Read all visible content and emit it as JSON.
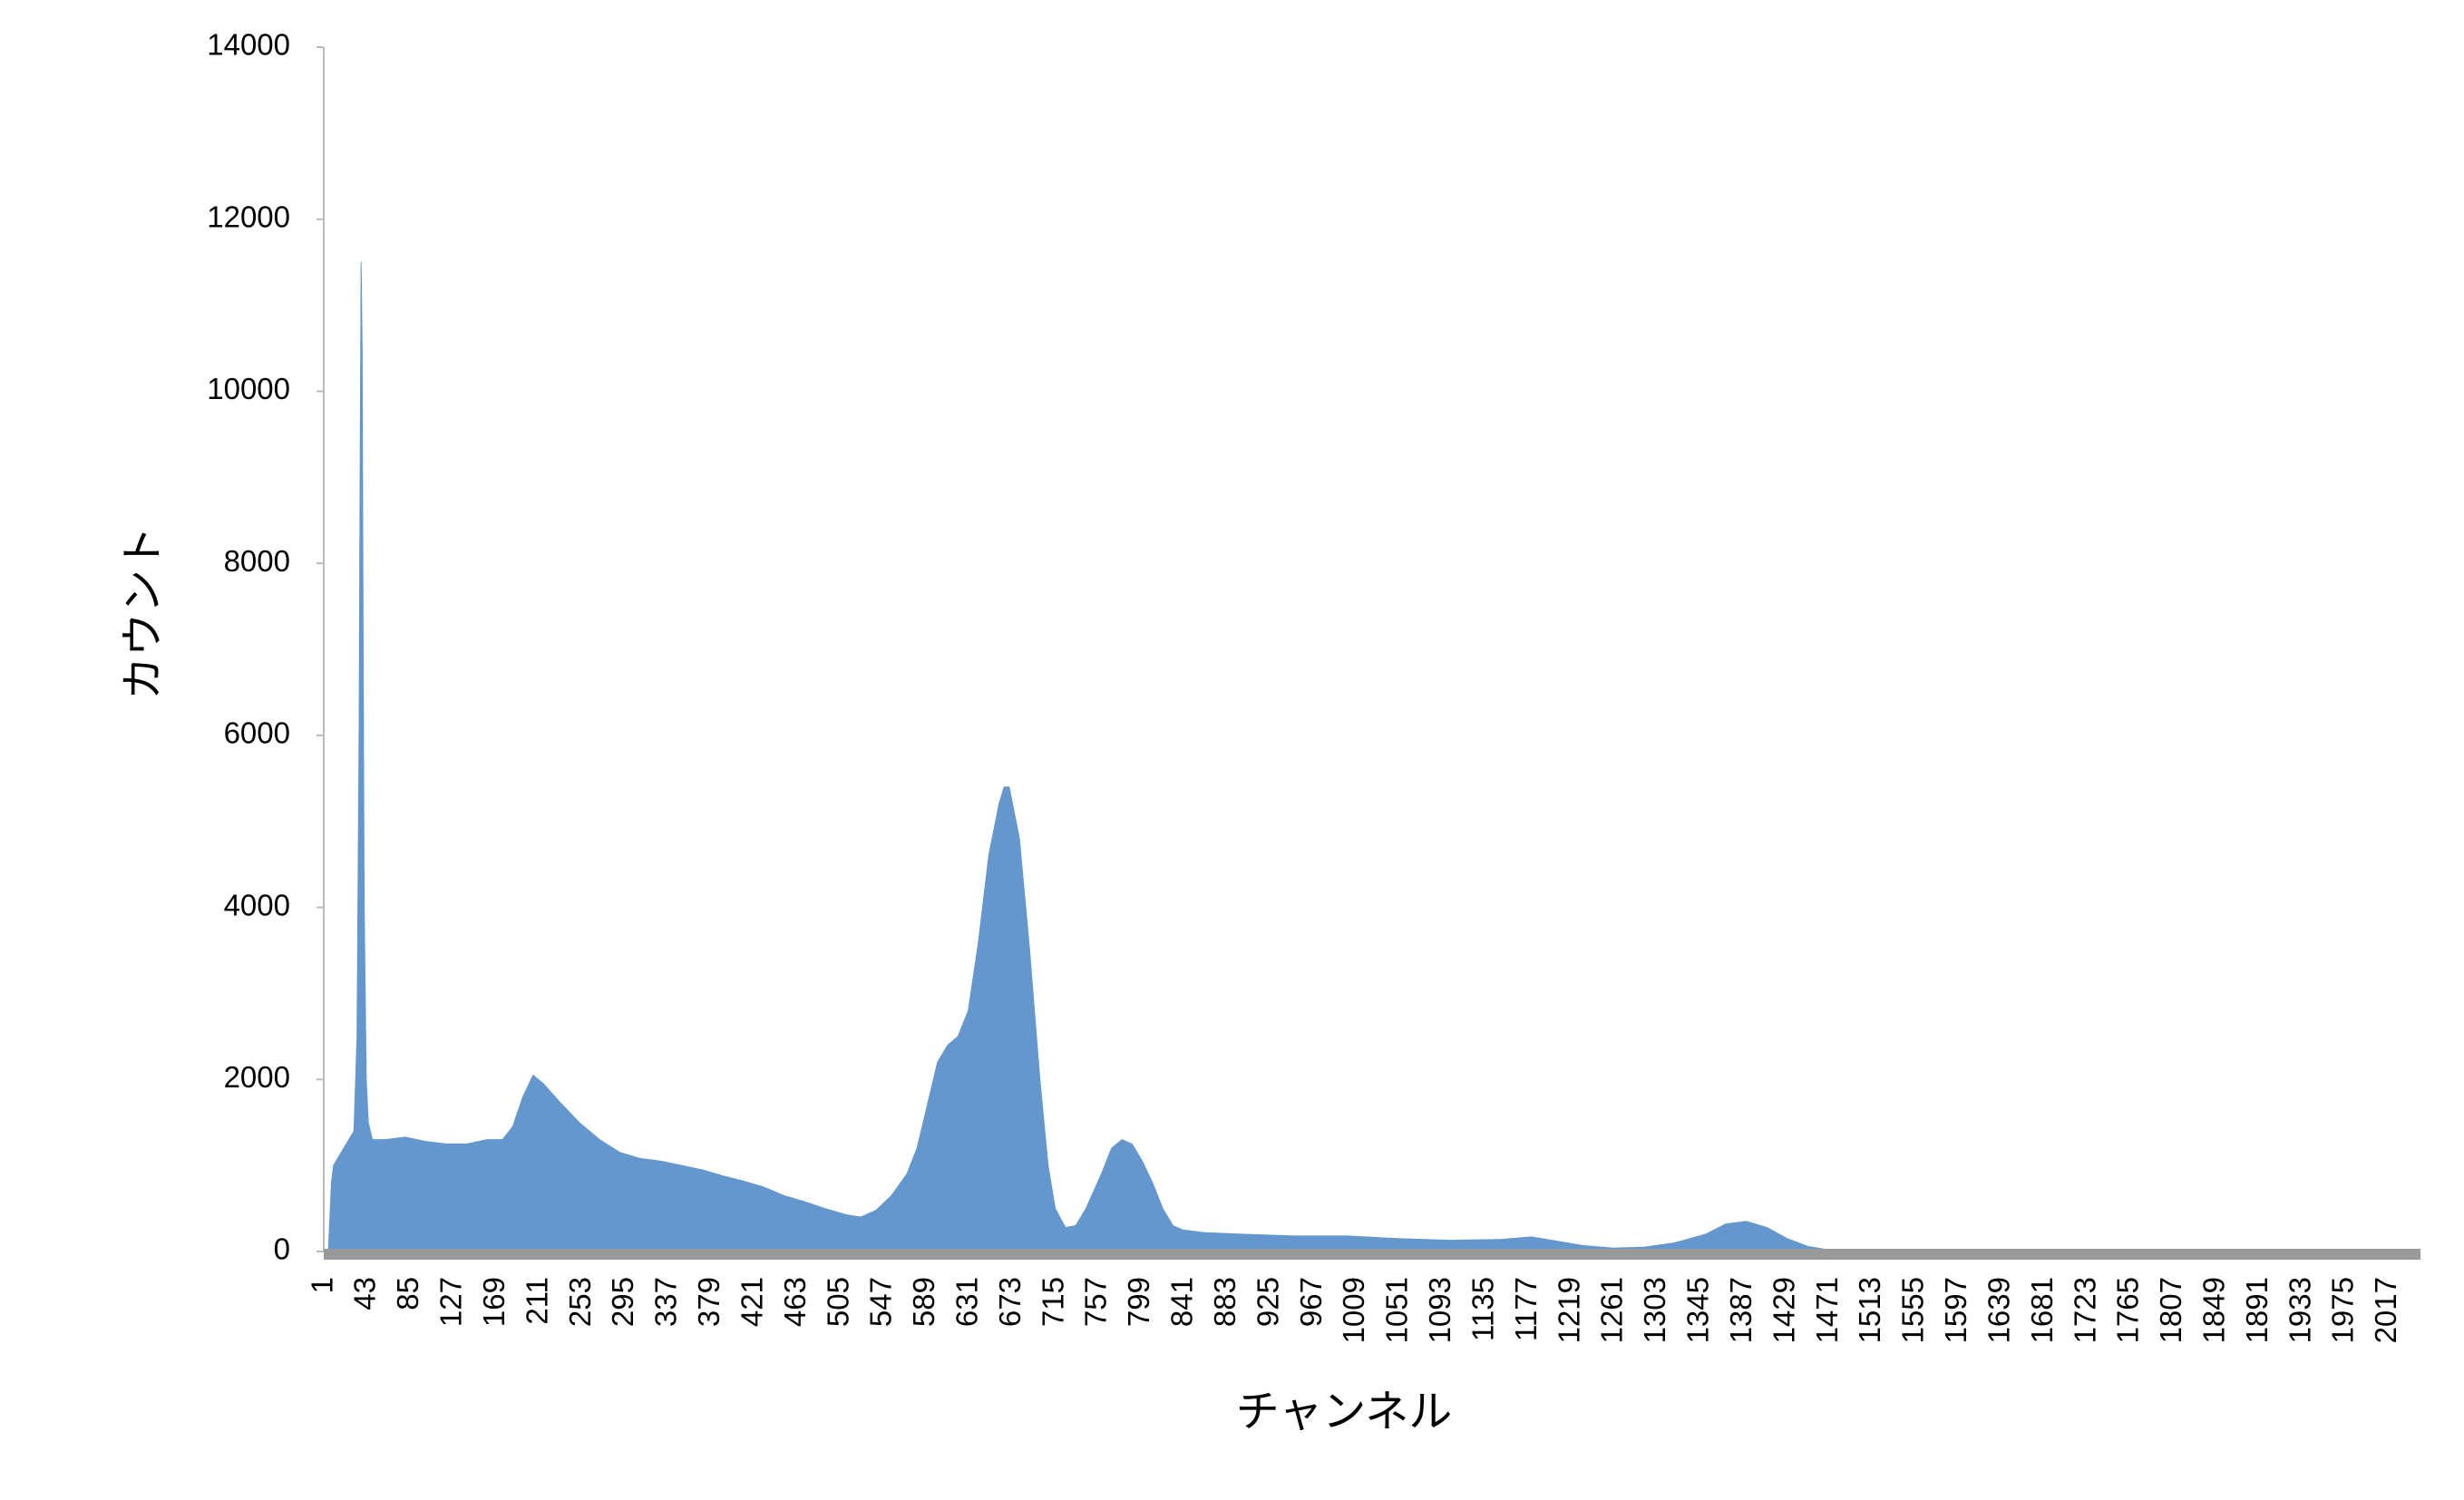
{
  "chart_data": {
    "type": "area",
    "xlabel": "チャンネル",
    "ylabel": "カウント",
    "series": [
      {
        "name": "カウント",
        "color": "#6497cd",
        "x": [
          1,
          5,
          8,
          10,
          15,
          20,
          25,
          30,
          33,
          35,
          36,
          37,
          38,
          39,
          40,
          42,
          44,
          48,
          60,
          80,
          100,
          120,
          140,
          160,
          175,
          185,
          195,
          205,
          215,
          230,
          250,
          270,
          290,
          310,
          330,
          350,
          370,
          390,
          410,
          430,
          450,
          470,
          490,
          510,
          525,
          540,
          555,
          570,
          580,
          590,
          600,
          610,
          620,
          630,
          640,
          650,
          660,
          665,
          670,
          680,
          690,
          700,
          708,
          715,
          725,
          735,
          745,
          760,
          770,
          780,
          790,
          800,
          810,
          820,
          830,
          840,
          860,
          900,
          950,
          1000,
          1050,
          1100,
          1150,
          1180,
          1200,
          1230,
          1260,
          1290,
          1320,
          1350,
          1370,
          1390,
          1410,
          1430,
          1450,
          1470,
          1500,
          1600,
          1800,
          1850,
          1900,
          2048
        ],
        "values": [
          0,
          0,
          800,
          1000,
          1100,
          1200,
          1300,
          1400,
          2500,
          6000,
          9000,
          11500,
          10500,
          7000,
          4000,
          2000,
          1500,
          1300,
          1300,
          1330,
          1280,
          1250,
          1250,
          1300,
          1300,
          1450,
          1800,
          2050,
          1950,
          1750,
          1500,
          1300,
          1150,
          1080,
          1050,
          1000,
          950,
          880,
          820,
          750,
          650,
          580,
          500,
          430,
          400,
          480,
          650,
          900,
          1200,
          1700,
          2200,
          2400,
          2500,
          2800,
          3600,
          4600,
          5200,
          5400,
          5400,
          4800,
          3500,
          2000,
          1000,
          500,
          280,
          300,
          500,
          900,
          1200,
          1300,
          1250,
          1050,
          800,
          500,
          300,
          250,
          220,
          200,
          180,
          180,
          150,
          130,
          140,
          170,
          130,
          70,
          40,
          50,
          100,
          200,
          320,
          350,
          280,
          150,
          60,
          20,
          10,
          10,
          5,
          20,
          5,
          0
        ]
      }
    ],
    "xlim": [
      0.5,
      2048.5
    ],
    "xticks": [
      1,
      43,
      85,
      127,
      169,
      211,
      253,
      295,
      337,
      379,
      421,
      463,
      505,
      547,
      589,
      631,
      673,
      715,
      757,
      799,
      841,
      883,
      925,
      967,
      1009,
      1051,
      1093,
      1135,
      1177,
      1219,
      1261,
      1303,
      1345,
      1387,
      1429,
      1471,
      1513,
      1555,
      1597,
      1639,
      1681,
      1723,
      1765,
      1807,
      1849,
      1891,
      1933,
      1975,
      2017
    ],
    "ylim": [
      0,
      14000
    ],
    "yticks": [
      0,
      2000,
      4000,
      6000,
      8000,
      10000,
      12000,
      14000
    ]
  }
}
